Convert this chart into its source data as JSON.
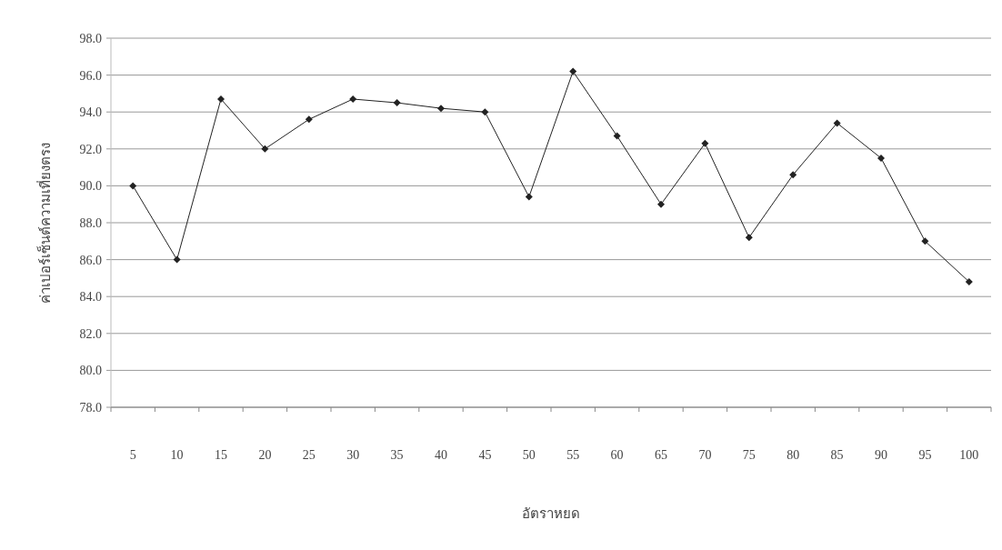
{
  "chart_data": {
    "type": "line",
    "xlabel": "อัตราหยด",
    "ylabel": "ค่าเปอร์เซ็นต์ความเที่ยงตรง",
    "categories": [
      "5",
      "10",
      "15",
      "20",
      "25",
      "30",
      "35",
      "40",
      "45",
      "50",
      "55",
      "60",
      "65",
      "70",
      "75",
      "80",
      "85",
      "90",
      "95",
      "100"
    ],
    "series": [
      {
        "color": "#222222",
        "values": [
          90.0,
          86.0,
          94.7,
          92.0,
          93.6,
          94.7,
          94.5,
          94.2,
          94.0,
          89.4,
          96.2,
          92.7,
          89.0,
          92.3,
          87.2,
          90.6,
          93.4,
          91.5,
          87.0,
          84.8
        ]
      }
    ],
    "ylim": [
      78,
      98
    ],
    "yticks": [
      {
        "value": 78,
        "label": "78.0"
      },
      {
        "value": 80,
        "label": "80.0"
      },
      {
        "value": 82,
        "label": "82.0"
      },
      {
        "value": 84,
        "label": "84.0"
      },
      {
        "value": 86,
        "label": "86.0"
      },
      {
        "value": 88,
        "label": "88.0"
      },
      {
        "value": 90,
        "label": "90.0"
      },
      {
        "value": 92,
        "label": "92.0"
      },
      {
        "value": 94,
        "label": "94.0"
      },
      {
        "value": 96,
        "label": "96.0"
      },
      {
        "value": 98,
        "label": "98.0"
      }
    ],
    "grid": "y",
    "marker": "diamond",
    "line_style": "solid"
  }
}
